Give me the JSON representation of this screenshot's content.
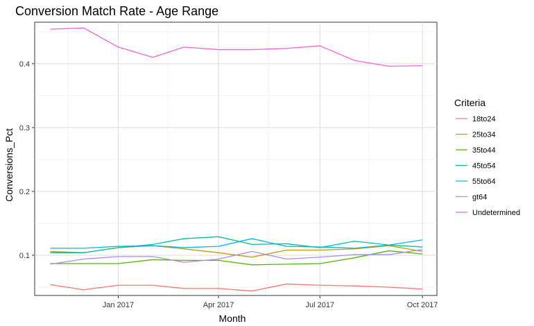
{
  "chart_data": {
    "type": "line",
    "title": "Conversion Match Rate - Age Range",
    "xlabel": "Month",
    "ylabel": "Conversions_Pct",
    "x": [
      "2016-11-01",
      "2016-12-01",
      "2017-01-01",
      "2017-02-01",
      "2017-03-01",
      "2017-04-01",
      "2017-05-01",
      "2017-06-01",
      "2017-07-01",
      "2017-08-01",
      "2017-09-01",
      "2017-10-01"
    ],
    "x_ticks": [
      {
        "label": "Jan 2017",
        "date": "2017-01-01"
      },
      {
        "label": "Apr 2017",
        "date": "2017-04-01"
      },
      {
        "label": "Jul 2017",
        "date": "2017-07-01"
      },
      {
        "label": "Oct 2017",
        "date": "2017-10-01"
      }
    ],
    "xlim": [
      "2016-10-18",
      "2017-10-14"
    ],
    "ylim": [
      0.037,
      0.465
    ],
    "y_ticks": [
      0.1,
      0.2,
      0.3,
      0.4
    ],
    "grid": true,
    "legend": {
      "title": "Criteria",
      "position": "right"
    },
    "series": [
      {
        "name": "18to24",
        "color": "#F8766D",
        "values": [
          0.054,
          0.046,
          0.053,
          0.053,
          0.048,
          0.048,
          0.044,
          0.055,
          0.053,
          0.052,
          0.05,
          0.047
        ]
      },
      {
        "name": "25to34",
        "color": "#C49A00",
        "values": [
          0.106,
          0.104,
          0.112,
          0.115,
          0.11,
          0.104,
          0.097,
          0.108,
          0.108,
          0.11,
          0.115,
          0.106
        ]
      },
      {
        "name": "35to44",
        "color": "#53B400",
        "values": [
          0.087,
          0.087,
          0.087,
          0.093,
          0.092,
          0.092,
          0.085,
          0.086,
          0.087,
          0.096,
          0.107,
          0.102
        ]
      },
      {
        "name": "45to54",
        "color": "#00C094",
        "values": [
          0.104,
          0.104,
          0.112,
          0.117,
          0.126,
          0.129,
          0.117,
          0.118,
          0.112,
          0.122,
          0.116,
          0.113
        ]
      },
      {
        "name": "55to64",
        "color": "#00B6EB",
        "values": [
          0.111,
          0.111,
          0.114,
          0.115,
          0.112,
          0.114,
          0.126,
          0.114,
          0.113,
          0.111,
          0.116,
          0.124
        ]
      },
      {
        "name": "gt64",
        "color": "#A58AFF",
        "values": [
          0.086,
          0.094,
          0.098,
          0.098,
          0.089,
          0.094,
          0.106,
          0.094,
          0.097,
          0.101,
          0.101,
          0.109
        ]
      },
      {
        "name": "Undetermined",
        "color": "#FB61D7",
        "values": [
          0.454,
          0.456,
          0.426,
          0.41,
          0.426,
          0.422,
          0.422,
          0.424,
          0.428,
          0.405,
          0.396,
          0.397
        ]
      }
    ]
  }
}
